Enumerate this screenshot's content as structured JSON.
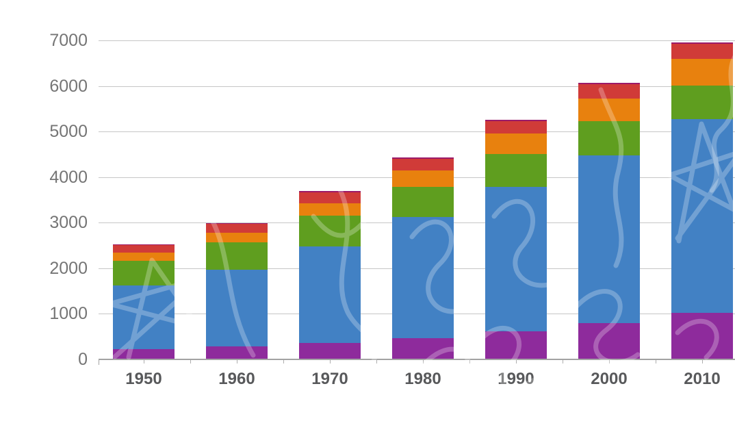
{
  "chart_data": {
    "type": "bar",
    "stacked": true,
    "title": "",
    "xlabel": "",
    "ylabel": "",
    "categories": [
      "1950",
      "1960",
      "1970",
      "1980",
      "1990",
      "2000",
      "2010"
    ],
    "series": [
      {
        "name": "purple-segment",
        "color": "#8e2b9c",
        "values": [
          220,
          280,
          360,
          470,
          620,
          790,
          1020
        ]
      },
      {
        "name": "blue-segment",
        "color": "#4281c4",
        "values": [
          1400,
          1690,
          2125,
          2650,
          3170,
          3690,
          4250
        ]
      },
      {
        "name": "green-segment",
        "color": "#5f9e1f",
        "values": [
          550,
          605,
          670,
          660,
          710,
          745,
          745
        ]
      },
      {
        "name": "orange-segment",
        "color": "#e8810e",
        "values": [
          170,
          200,
          265,
          360,
          450,
          495,
          575
        ]
      },
      {
        "name": "red-segment",
        "color": "#d03b38",
        "values": [
          175,
          200,
          250,
          265,
          280,
          315,
          330
        ]
      },
      {
        "name": "magenta-cap-segment",
        "color": "#9c1a68",
        "values": [
          13,
          16,
          20,
          23,
          27,
          31,
          37
        ]
      }
    ],
    "stack_totals": [
      2528,
      2991,
      3690,
      4428,
      5257,
      6066,
      6957
    ],
    "ylim": [
      0,
      7000
    ],
    "ytick_step": 1000,
    "yticks": [
      "0",
      "1000",
      "2000",
      "3000",
      "4000",
      "5000",
      "6000",
      "7000"
    ],
    "grid": true,
    "legend": "none",
    "colors": {
      "gridline": "#c6c6c6",
      "axis_line": "#a3a3a3",
      "y_tick_label": "#757575",
      "x_tick_label": "#58595b",
      "background": "#ffffff",
      "watermark_stroke": "#ffffff"
    }
  }
}
